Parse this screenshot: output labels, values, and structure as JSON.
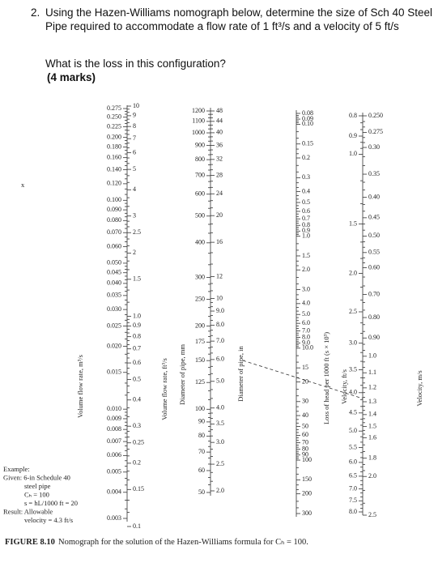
{
  "question": {
    "number": "2.",
    "line1": "Using the Hazen-Williams nomograph below, determine the size of Sch 40 Steel",
    "line2": "Pipe required to accommodate a flow rate of 1 ft³/s and a velocity of 5 ft/s",
    "line3": "What is the loss in this configuration?",
    "marks": "(4 marks)"
  },
  "margin_mark": "x",
  "scales": [
    {
      "title": "Volume flow rate, m³/s",
      "labels": [
        "0.275",
        "0.250",
        "0.225",
        "0.200",
        "0.180",
        "0.160",
        "0.140",
        "0.120",
        "0.100",
        "0.090",
        "0.080",
        "0.070",
        "0.060",
        "0.050",
        "0.045",
        "0.040",
        "0.035",
        "0.030",
        "0.025",
        "0.020",
        "0.015",
        "0.010",
        "0.009",
        "0.008",
        "0.007",
        "0.006",
        "0.005",
        "0.004",
        "0.003"
      ]
    },
    {
      "title": "Volume flow rate, ft³/s",
      "labels": [
        "10",
        "9",
        "8",
        "7",
        "6",
        "5",
        "4",
        "3",
        "2.5",
        "2",
        "1.5",
        "1.0",
        "0.9",
        "0.8",
        "0.7",
        "0.6",
        "0.5",
        "0.4",
        "0.3",
        "0.25",
        "0.2",
        "0.15",
        "0.1"
      ]
    },
    {
      "title": "Diameter of pipe, mm",
      "labels": [
        "1200",
        "1100",
        "1000",
        "900",
        "800",
        "700",
        "600",
        "500",
        "400",
        "300",
        "250",
        "200",
        "175",
        "150",
        "125",
        "100",
        "90",
        "80",
        "70",
        "60",
        "50"
      ]
    },
    {
      "title": "Diameter of pipe, in",
      "labels": [
        "48",
        "44",
        "40",
        "36",
        "32",
        "28",
        "24",
        "20",
        "16",
        "12",
        "10",
        "9.0",
        "8.0",
        "7.0",
        "6.0",
        "5.0",
        "4.0",
        "3.5",
        "3.0",
        "2.5",
        "2.0"
      ]
    },
    {
      "title": "Loss of head per 1000 ft (s × 10³)",
      "labels": [
        "0.08",
        "0.09",
        "0.10",
        "0.15",
        "0.2",
        "0.3",
        "0.4",
        "0.5",
        "0.6",
        "0.7",
        "0.8",
        "0.9",
        "1.0",
        "1.5",
        "2.0",
        "3.0",
        "4.0",
        "5.0",
        "6.0",
        "7.0",
        "8.0",
        "9.0",
        "10.0",
        "15",
        "20",
        "30",
        "40",
        "50",
        "60",
        "70",
        "80",
        "90",
        "100",
        "150",
        "200",
        "300"
      ]
    },
    {
      "title": "Velocity, ft/s",
      "labels": [
        "0.8",
        "0.9",
        "1.0",
        "1.5",
        "2.0",
        "2.5",
        "3.0",
        "3.5",
        "4.0",
        "4.5",
        "5.0",
        "5.5",
        "6.0",
        "6.5",
        "7.0",
        "7.5",
        "8.0"
      ]
    },
    {
      "title": "Velocity, m/s",
      "labels": [
        "0.250",
        "0.275",
        "0.30",
        "0.35",
        "0.40",
        "0.45",
        "0.50",
        "0.55",
        "0.60",
        "0.70",
        "0.80",
        "0.90",
        "1.0",
        "1.1",
        "1.2",
        "1.3",
        "1.4",
        "1.5",
        "1.6",
        "1.8",
        "2.0",
        "2.5"
      ]
    }
  ],
  "example": [
    "Example:",
    "Given: 6-in Schedule 40",
    "steel pipe",
    "Cₕ = 100",
    "s = hL/1000 ft = 20",
    "Result: Allowable",
    "velocity = 4.3 ft/s"
  ],
  "caption": {
    "label": "FIGURE 8.10",
    "text": "Nomograph for the solution of the Hazen-Williams formula for Cₕ = 100."
  }
}
